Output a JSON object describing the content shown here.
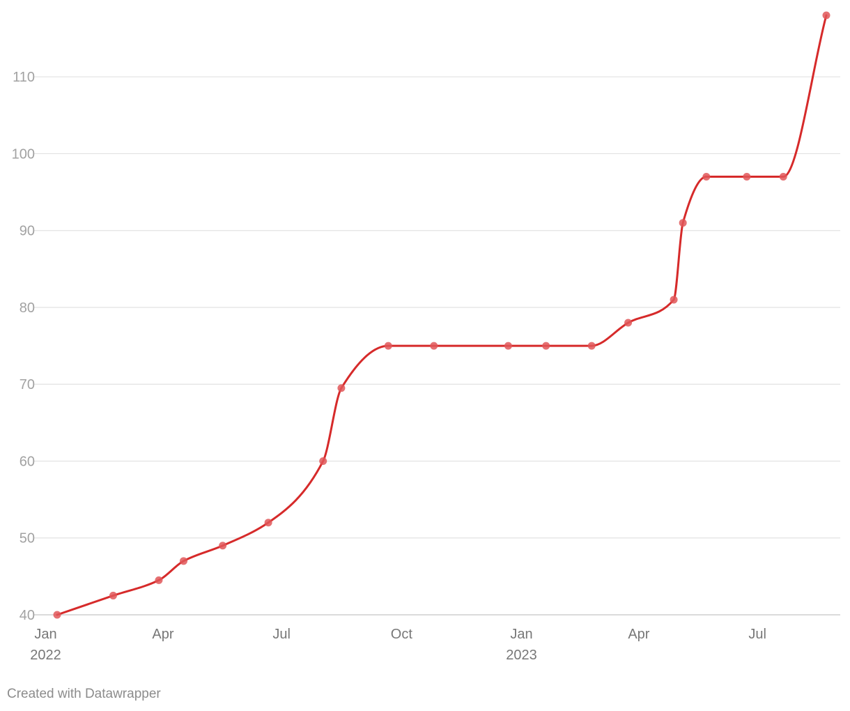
{
  "chart_data": {
    "type": "line",
    "title": "",
    "xlabel": "",
    "ylabel": "",
    "ylim": [
      40,
      118
    ],
    "yticks": [
      40,
      50,
      60,
      70,
      80,
      90,
      100,
      110
    ],
    "grid": true,
    "legend": "none",
    "line_color": "#d62a2a",
    "marker_color": "#e15759",
    "xticks": [
      {
        "date": "2022-01-01",
        "label": "Jan",
        "sublabel": "2022"
      },
      {
        "date": "2022-04-01",
        "label": "Apr",
        "sublabel": ""
      },
      {
        "date": "2022-07-01",
        "label": "Jul",
        "sublabel": ""
      },
      {
        "date": "2022-10-01",
        "label": "Oct",
        "sublabel": ""
      },
      {
        "date": "2023-01-01",
        "label": "Jan",
        "sublabel": "2023"
      },
      {
        "date": "2023-04-01",
        "label": "Apr",
        "sublabel": ""
      },
      {
        "date": "2023-07-01",
        "label": "Jul",
        "sublabel": ""
      }
    ],
    "series": [
      {
        "points": [
          {
            "x": "2022-01-05",
            "y": 40
          },
          {
            "x": "2022-02-17",
            "y": 42.5
          },
          {
            "x": "2022-03-24",
            "y": 44.5
          },
          {
            "x": "2022-04-12",
            "y": 47
          },
          {
            "x": "2022-05-12",
            "y": 49
          },
          {
            "x": "2022-06-16",
            "y": 52
          },
          {
            "x": "2022-07-28",
            "y": 60
          },
          {
            "x": "2022-08-11",
            "y": 69.5
          },
          {
            "x": "2022-09-16",
            "y": 75
          },
          {
            "x": "2022-10-21",
            "y": 75
          },
          {
            "x": "2022-12-17",
            "y": 75
          },
          {
            "x": "2023-01-15",
            "y": 75
          },
          {
            "x": "2023-02-19",
            "y": 75
          },
          {
            "x": "2023-03-19",
            "y": 78
          },
          {
            "x": "2023-04-23",
            "y": 81
          },
          {
            "x": "2023-04-30",
            "y": 91
          },
          {
            "x": "2023-05-18",
            "y": 97
          },
          {
            "x": "2023-06-18",
            "y": 97
          },
          {
            "x": "2023-07-16",
            "y": 97
          },
          {
            "x": "2023-08-18",
            "y": 118
          }
        ]
      }
    ]
  },
  "footer": "Created with Datawrapper"
}
